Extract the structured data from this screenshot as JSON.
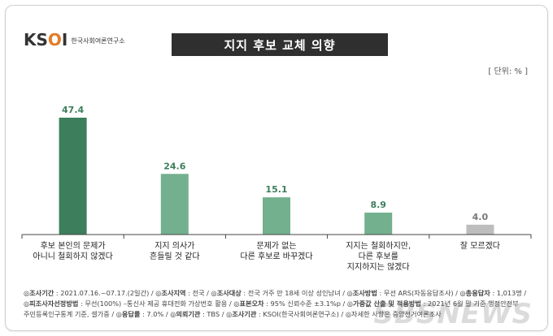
{
  "logo": {
    "mark": "KSOI",
    "text": "한국사회여론연구소"
  },
  "title": "지지 후보 교체 의향",
  "unit": "[ 단위: % ]",
  "chart_data": {
    "type": "bar",
    "title": "지지 후보 교체 의향",
    "categories": [
      [
        "후보 본인의 문제가",
        "아니니 철회하지 않겠다"
      ],
      [
        "지지 의사가",
        "흔들릴 것 같다"
      ],
      [
        "문제가 없는",
        "다른 후보로 바꾸겠다"
      ],
      [
        "지지는 철회하지만,",
        "다른 후보를",
        "지지하지는 않겠다"
      ],
      [
        "잘 모르겠다"
      ]
    ],
    "values": [
      47.4,
      24.6,
      15.1,
      8.9,
      4.0
    ],
    "value_labels": [
      "47.4",
      "24.6",
      "15.1",
      "8.9",
      "4.0"
    ],
    "colors": [
      "#3d7e5c",
      "#72b08e",
      "#72b08e",
      "#72b08e",
      "#bdbdbd"
    ],
    "ylim": [
      0,
      50
    ]
  },
  "footer": {
    "line1": [
      {
        "k": "◎조사기간",
        "v": " : 2021.07.16.~07.17.(2일간)  / "
      },
      {
        "k": "◎조사지역",
        "v": " : 전국  / "
      },
      {
        "k": "◎조사대상",
        "v": " : 전국 거주 만 18세 이상 성인남녀  / "
      },
      {
        "k": "◎조사방법",
        "v": " : 무선 ARS(자동응답조사)  / "
      },
      {
        "k": "◎총응답자",
        "v": " : 1,013명 /"
      }
    ],
    "line2": [
      {
        "k": "◎피조사자선정방법",
        "v": " : 무선(100%) –통신사 제공 휴대전화 가상번호 활용  / "
      },
      {
        "k": "◎표본오차",
        "v": " : 95% 신뢰수준 ±3.1%p  / "
      },
      {
        "k": "◎가중값 산출 및 적용방법",
        "v": " : 2021년 6월 말 기준 행정안전부"
      }
    ],
    "line3": [
      {
        "k": "",
        "v": "주민등록인구통계 기준, 셀가중  / "
      },
      {
        "k": "◎응답률",
        "v": " : 7.0%  / "
      },
      {
        "k": "◎의뢰기관",
        "v": " : TBS  / "
      },
      {
        "k": "◎조사기관",
        "v": " : KSOI(한국사회여론연구소)  / "
      },
      {
        "k": "",
        "v": "◎자세한 사항은 중앙선거여론조사"
      }
    ]
  },
  "watermark": "SBSNEWS"
}
